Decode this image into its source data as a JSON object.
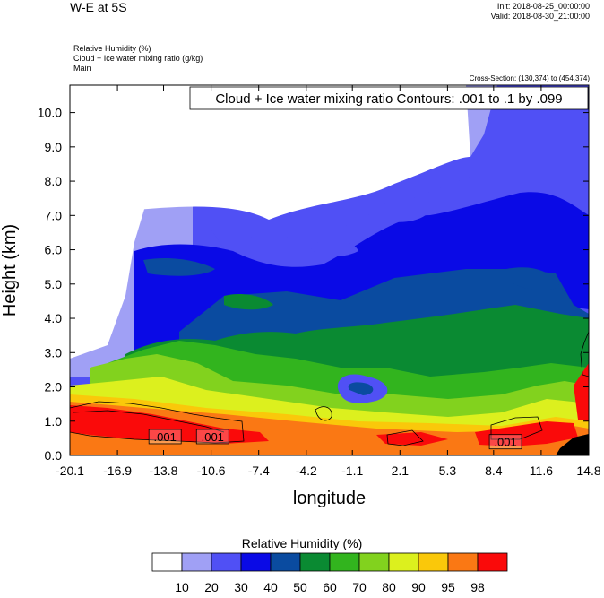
{
  "header": {
    "title": "W-E at 5S",
    "init": "Init: 2018-08-25_00:00:00",
    "valid": "Valid: 2018-08-30_21:00:00",
    "field1": "Relative Humidity   (%)",
    "field2": "Cloud + Ice water mixing ratio   (g/kg)",
    "field3": "Main",
    "cross_section": "Cross-Section: (130,374) to (454,374)"
  },
  "chart_data": {
    "type": "heatmap",
    "contour_title": "Cloud + Ice water mixing ratio Contours: .001 to .1 by .099",
    "xlabel": "longitude",
    "ylabel": "Height (km)",
    "x_ticks": [
      "-20.1",
      "-16.9",
      "-13.8",
      "-10.6",
      "-7.4",
      "-4.2",
      "-1.1",
      "2.1",
      "5.3",
      "8.4",
      "11.6",
      "14.8"
    ],
    "y_ticks": [
      "0.0",
      "1.0",
      "2.0",
      "3.0",
      "4.0",
      "5.0",
      "6.0",
      "7.0",
      "8.0",
      "9.0",
      "10.0"
    ],
    "xlim": [
      -20.1,
      14.8
    ],
    "ylim": [
      0.0,
      10.8
    ],
    "contour_labels": [
      {
        "text": ".001",
        "x": -13.7,
        "y": 0.55
      },
      {
        "text": ".001",
        "x": -10.5,
        "y": 0.55
      },
      {
        "text": ".001",
        "x": 9.2,
        "y": 0.4
      }
    ],
    "colorbar": {
      "title": "Relative Humidity  (%)",
      "levels": [
        "10",
        "20",
        "30",
        "40",
        "50",
        "60",
        "70",
        "80",
        "90",
        "95",
        "98"
      ],
      "colors": [
        "#ffffff",
        "#a0a0f5",
        "#5050f5",
        "#0a0ae6",
        "#0a4ba0",
        "#0a8a32",
        "#32b41e",
        "#82d21e",
        "#dcf01e",
        "#fac80a",
        "#fa7814",
        "#fa0a0a"
      ]
    }
  }
}
